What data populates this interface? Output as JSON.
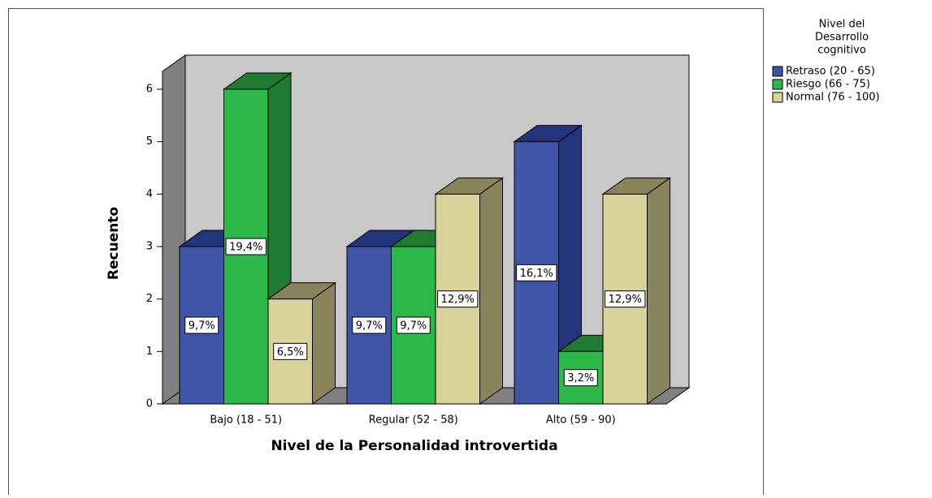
{
  "chart_data": {
    "type": "bar3d",
    "ylabel": "Recuento",
    "xlabel": "Nivel  de la Personalidad introvertida",
    "legend_title": [
      "Nivel del",
      "Desarrollo",
      "cognitivo"
    ],
    "legend": "right",
    "categories": [
      "Bajo (18 -  51)",
      "Regular (52 - 58)",
      "Alto (59 - 90)"
    ],
    "series": [
      {
        "name": "Retraso (20 - 65)",
        "color": "#3f55a8",
        "dark": "#24347a",
        "values": [
          3,
          3,
          5
        ],
        "data_labels": [
          "9,7%",
          "9,7%",
          "16,1%"
        ]
      },
      {
        "name": "Riesgo (66 - 75)",
        "color": "#2db84a",
        "dark": "#1f7a32",
        "values": [
          6,
          3,
          1
        ],
        "data_labels": [
          "19,4%",
          "9,7%",
          "3,2%"
        ]
      },
      {
        "name": "Normal (76  - 100)",
        "color": "#d8d39a",
        "dark": "#8a845c",
        "values": [
          2,
          4,
          4
        ],
        "data_labels": [
          "6,5%",
          "12,9%",
          "12,9%"
        ]
      }
    ],
    "ylim": [
      0,
      6.3
    ],
    "yticks": [
      0,
      1,
      2,
      3,
      4,
      5,
      6
    ],
    "grid": false
  }
}
